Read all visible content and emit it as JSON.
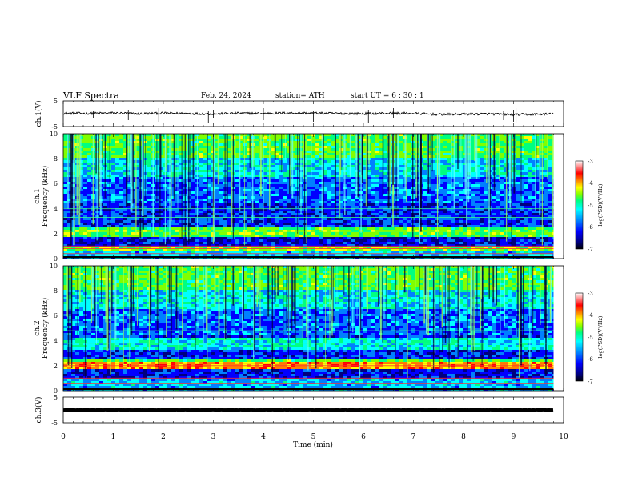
{
  "header": {
    "title": "VLF  Spectra",
    "date": "Feb. 24, 2024",
    "station": "station= ATH",
    "start": "start  UT  =    6   : 30 : 1"
  },
  "chart_data": [
    {
      "type": "line",
      "panel": "ch1-waveform",
      "ylabel": "ch.1(V)",
      "yticks": [
        "5",
        "-5"
      ],
      "ylim": [
        -5,
        5
      ],
      "x": [
        0,
        0.5,
        1,
        1.5,
        2,
        2.5,
        3,
        3.5,
        4,
        4.5,
        5,
        5.5,
        6,
        6.5,
        7,
        7.5,
        8,
        8.5,
        9,
        9.5,
        9.8
      ],
      "y": [
        0.2,
        0.1,
        0.3,
        0.0,
        0.2,
        0.1,
        -0.1,
        0.2,
        0.1,
        0.3,
        0.2,
        0.1,
        0.0,
        0.2,
        0.1,
        -0.3,
        -0.2,
        -0.1,
        -0.4,
        -0.2,
        -0.1
      ]
    },
    {
      "type": "heatmap",
      "panel": "ch1-spectrogram",
      "ylabel": "ch.1\nFrequency  (kHz)",
      "yticks": [
        "10",
        "8",
        "6",
        "4",
        "2",
        "0"
      ],
      "ylim": [
        0,
        10
      ],
      "colorbar": {
        "label": "log(PSD)(V²/Hz)",
        "ticks": [
          "-3",
          "-4",
          "-5",
          "-6",
          "-7"
        ],
        "range": [
          -7,
          -3
        ]
      }
    },
    {
      "type": "heatmap",
      "panel": "ch2-spectrogram",
      "ylabel": "ch.2\nFrequency  (kHz)",
      "yticks": [
        "10",
        "8",
        "6",
        "4",
        "2",
        "0"
      ],
      "ylim": [
        0,
        10
      ],
      "colorbar": {
        "label": "log(PSD)(V²/Hz)",
        "ticks": [
          "-3",
          "-4",
          "-5",
          "-6",
          "-7"
        ],
        "range": [
          -7,
          -3
        ]
      }
    },
    {
      "type": "line",
      "panel": "ch3-waveform",
      "ylabel": "ch.3(V)",
      "yticks": [
        "5",
        "-5"
      ],
      "ylim": [
        -5,
        5
      ],
      "x": [
        0,
        9.8
      ],
      "y": [
        0,
        0
      ]
    }
  ],
  "xaxis": {
    "label": "Time  (min)",
    "ticks": [
      "0",
      "1",
      "2",
      "3",
      "4",
      "5",
      "6",
      "7",
      "8",
      "9",
      "10"
    ],
    "xlim": [
      0,
      10
    ]
  },
  "colors": {
    "scale": [
      "#000000",
      "#00007f",
      "#0000ff",
      "#0080ff",
      "#00ffff",
      "#00ff80",
      "#80ff00",
      "#ffff00",
      "#ff8000",
      "#ff0000",
      "#ffffff"
    ]
  }
}
